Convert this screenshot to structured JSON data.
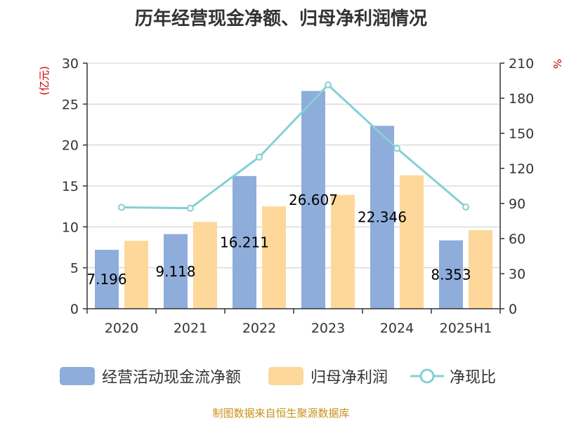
{
  "title": "历年经营现金净额、归母净利润情况",
  "colors": {
    "operating": "#8eadda",
    "net_profit": "#fdd89a",
    "ratio": "#84d0d4",
    "axis": "#333333",
    "grid": "#cccccc",
    "unit": "#cc0000",
    "source": "#c8911a"
  },
  "chart_data": {
    "type": "bar",
    "categories": [
      "2020",
      "2021",
      "2022",
      "2023",
      "2024",
      "2025H1"
    ],
    "y_left": {
      "unit_label": "(亿元)",
      "range": [
        0,
        30
      ],
      "ticks": [
        "0",
        "5",
        "10",
        "15",
        "20",
        "25",
        "30"
      ]
    },
    "y_right": {
      "unit_label": "%",
      "range": [
        0,
        210
      ],
      "ticks": [
        "0",
        "30",
        "60",
        "90",
        "120",
        "150",
        "180",
        "210"
      ]
    },
    "grid": true,
    "legend_position": "bottom",
    "series": [
      {
        "name": "经营活动现金流净额",
        "type": "bar",
        "axis": "left",
        "values": [
          7.196,
          9.118,
          16.211,
          26.607,
          22.346,
          8.353
        ],
        "labels": [
          "7.196",
          "9.118",
          "16.211",
          "26.607",
          "22.346",
          "8.353"
        ]
      },
      {
        "name": "归母净利润",
        "type": "bar",
        "axis": "left",
        "values": [
          8.3,
          10.6,
          12.5,
          13.9,
          16.3,
          9.6
        ]
      },
      {
        "name": "净现比",
        "type": "line",
        "axis": "right",
        "values": [
          86.7,
          86.0,
          129.7,
          191.4,
          137.1,
          87.0
        ]
      }
    ]
  },
  "legend": [
    "经营活动现金流净额",
    "归母净利润",
    "净现比"
  ],
  "source": "制图数据来自恒生聚源数据库"
}
